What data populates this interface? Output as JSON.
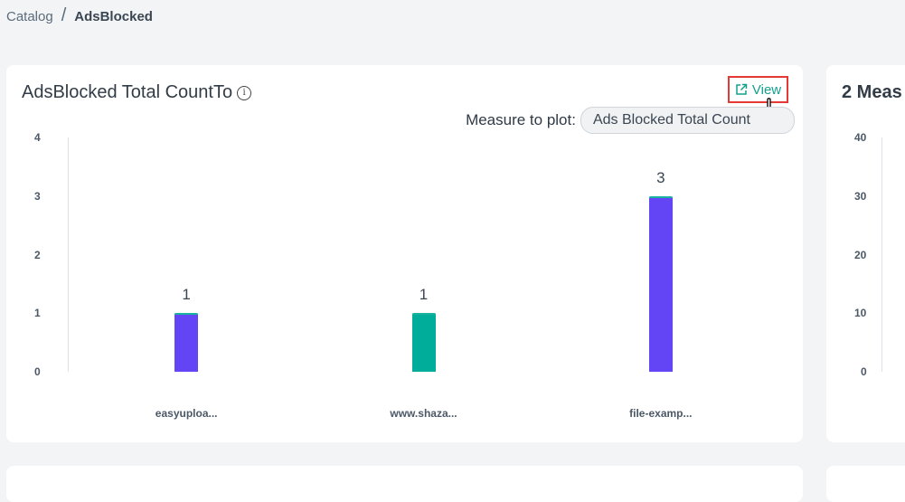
{
  "breadcrumb": {
    "parent": "Catalog",
    "separator": "/",
    "current": "AdsBlocked"
  },
  "main_card": {
    "title": "AdsBlocked Total CountTo",
    "info_icon": "info-icon",
    "view_label": "View",
    "measure_label": "Measure to plot:",
    "measure_value": "Ads Blocked Total Count"
  },
  "right_card": {
    "title": "2 Meas",
    "yticks": [
      "40",
      "30",
      "20",
      "10",
      "0"
    ]
  },
  "colors": {
    "series1": "#6445f5",
    "series2": "#00ad9a",
    "accent": "#13a08d",
    "highlight": "#e53935"
  },
  "chart_data": {
    "type": "bar",
    "categories": [
      "easyuploa...",
      "www.shaza...",
      "file-examp..."
    ],
    "values": [
      1,
      1,
      3
    ],
    "data_labels": [
      "1",
      "1",
      "3"
    ],
    "yticks": [
      "4",
      "3",
      "2",
      "1",
      "0"
    ],
    "ylim": [
      0,
      4
    ],
    "bar_colors": [
      "#6445f5",
      "#00ad9a",
      "#6445f5"
    ]
  }
}
